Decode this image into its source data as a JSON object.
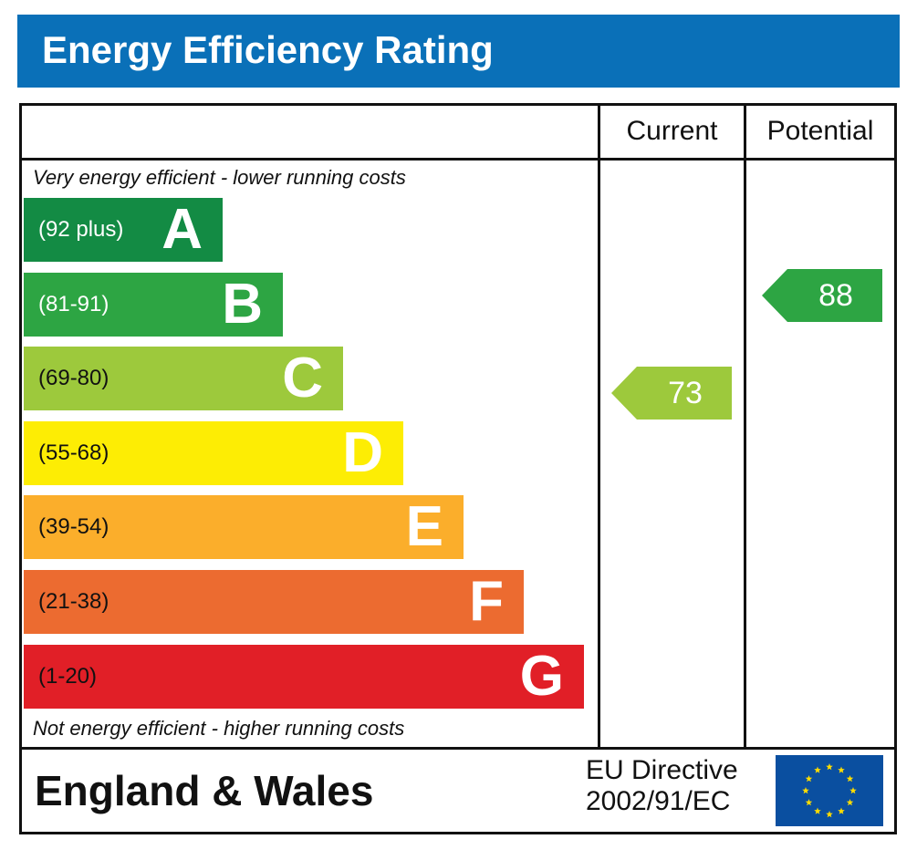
{
  "header": {
    "title": "Energy Efficiency Rating"
  },
  "columns": {
    "current": "Current",
    "potential": "Potential"
  },
  "captions": {
    "top": "Very energy efficient - lower running costs",
    "bottom": "Not energy efficient - higher running costs"
  },
  "chart_data": {
    "type": "bar",
    "title": "Energy Efficiency Rating",
    "categories": [
      "A",
      "B",
      "C",
      "D",
      "E",
      "F",
      "G"
    ],
    "bands": [
      {
        "letter": "A",
        "range": "(92 plus)",
        "color": "#138b44",
        "range_color": "#ffffff"
      },
      {
        "letter": "B",
        "range": "(81-91)",
        "color": "#2da543",
        "range_color": "#ffffff"
      },
      {
        "letter": "C",
        "range": "(69-80)",
        "color": "#9dc93c",
        "range_color": "#111111"
      },
      {
        "letter": "D",
        "range": "(55-68)",
        "color": "#fded04",
        "range_color": "#111111"
      },
      {
        "letter": "E",
        "range": "(39-54)",
        "color": "#fbae2b",
        "range_color": "#111111"
      },
      {
        "letter": "F",
        "range": "(21-38)",
        "color": "#ec6b30",
        "range_color": "#111111"
      },
      {
        "letter": "G",
        "range": "(1-20)",
        "color": "#e11f27",
        "range_color": "#111111"
      }
    ],
    "current": {
      "value": 73,
      "band": "C",
      "color": "#9dc93c"
    },
    "potential": {
      "value": 88,
      "band": "B",
      "color": "#2da543"
    }
  },
  "footer": {
    "region": "England & Wales",
    "directive_line1": "EU Directive",
    "directive_line2": "2002/91/EC",
    "flag_icon": "eu-flag-icon",
    "flag_color": "#0a4fa0",
    "star_color": "#ffdd00"
  }
}
